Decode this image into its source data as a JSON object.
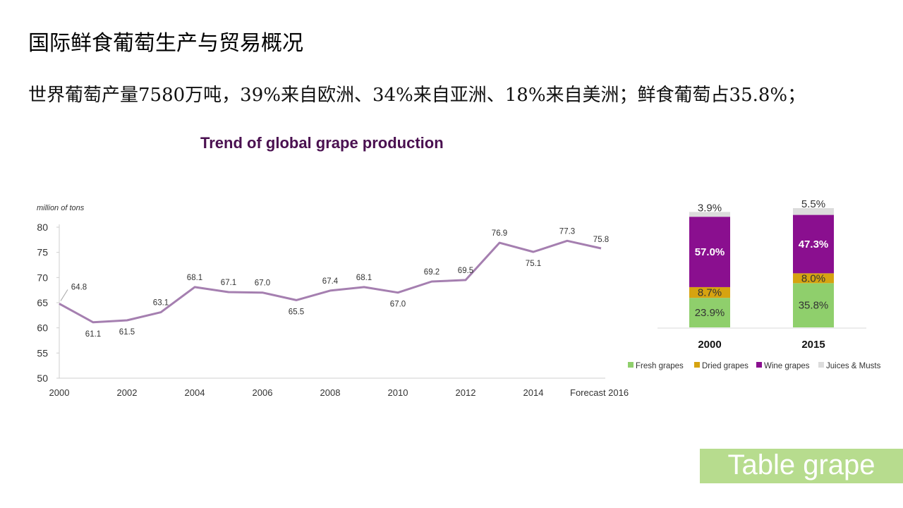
{
  "slide": {
    "title": "国际鲜食葡萄生产与贸易概况",
    "subtitle": "世界葡萄产量7580万吨，39%来自欧洲、34%来自亚洲、18%来自美洲；鲜食葡萄占35.8%；",
    "badge": "Table grape"
  },
  "colors": {
    "line": "#a57fb0",
    "title": "#4a1050",
    "fresh": "#8fcf6c",
    "dried": "#d6a310",
    "wine": "#8a0f8f",
    "juices": "#dcdcdc",
    "badge_bg": "#b7dc8e"
  },
  "chart_data": [
    {
      "type": "line",
      "title": "Trend of global grape production",
      "ylabel": "million of tons",
      "ylim": [
        50,
        80
      ],
      "yticks": [
        50,
        55,
        60,
        65,
        70,
        75,
        80
      ],
      "x": [
        2000,
        2001,
        2002,
        2003,
        2004,
        2005,
        2006,
        2007,
        2008,
        2009,
        2010,
        2011,
        2012,
        2013,
        2014,
        2015,
        2016
      ],
      "values": [
        64.8,
        61.1,
        61.5,
        63.1,
        68.1,
        67.1,
        67.0,
        65.5,
        67.4,
        68.1,
        67.0,
        69.2,
        69.5,
        76.9,
        75.1,
        77.3,
        75.8
      ],
      "point_labels": [
        "64.8",
        "61.1",
        "61.5",
        "63.1",
        "68.1",
        "67.1",
        "67.0",
        "65.5",
        "67.4",
        "68.1",
        "67.0",
        "69.2",
        "69.5",
        "76.9",
        "75.1",
        "77.3",
        "75.8"
      ],
      "xtick_labels": [
        "2000",
        "2002",
        "2004",
        "2006",
        "2008",
        "2010",
        "2012",
        "2014",
        "Forecast 2016"
      ],
      "xtick_values": [
        2000,
        2002,
        2004,
        2006,
        2008,
        2010,
        2012,
        2014,
        2016
      ]
    },
    {
      "type": "bar",
      "stacked": true,
      "categories": [
        "2000",
        "2015"
      ],
      "series": [
        {
          "name": "Fresh grapes",
          "values": [
            23.9,
            35.8
          ],
          "labels": [
            "23.9%",
            "35.8%"
          ]
        },
        {
          "name": "Dried grapes",
          "values": [
            8.7,
            8.0
          ],
          "labels": [
            "8.7%",
            "8.0%"
          ]
        },
        {
          "name": "Wine grapes",
          "values": [
            57.0,
            47.3
          ],
          "labels": [
            "57.0%",
            "47.3%"
          ]
        },
        {
          "name": "Juices &  Musts",
          "values": [
            3.9,
            5.5
          ],
          "labels": [
            "3.9%",
            "5.5%"
          ]
        }
      ],
      "legend": "bottom"
    }
  ]
}
